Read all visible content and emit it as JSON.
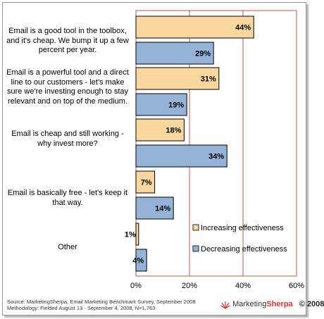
{
  "chart_data": {
    "type": "bar",
    "orientation": "horizontal",
    "categories": [
      "Email is a good tool in the toolbox, and it's cheap. We bump it up a few percent per year.",
      "Email is a powerful tool and a direct line to our customers - let's make sure we're investing enough to stay relevant and on top of the medium.",
      "Email is cheap and still working - why invest more?",
      "Email is basically free - let's keep it that way.",
      "Other"
    ],
    "category_lines": [
      [
        "Email is a good tool in the toolbox,",
        "and it's cheap. We bump it up a few",
        "percent per year."
      ],
      [
        "Email is a powerful tool and a direct",
        "line to our customers - let's make",
        "sure we're investing enough to stay",
        "relevant and on top of the medium."
      ],
      [
        "Email is cheap and still working -",
        "why invest more?"
      ],
      [
        "Email is basically free - let's keep it",
        "that way."
      ],
      [
        "Other"
      ]
    ],
    "series": [
      {
        "name": "Increasing effectiveness",
        "values": [
          44,
          31,
          18,
          7,
          1
        ],
        "color": "#fbd7a0"
      },
      {
        "name": "Decreasing effectiveness",
        "values": [
          29,
          19,
          34,
          14,
          4
        ],
        "color": "#94b3d7"
      }
    ],
    "value_suffix": "%",
    "xlim": [
      0,
      60
    ],
    "xticks": [
      0,
      20,
      40,
      60
    ],
    "xtick_labels": [
      "0%",
      "20%",
      "40%",
      "60%"
    ],
    "grid": "vertical lines at 20% and 40%",
    "legend_position": "lower-right"
  },
  "footer": {
    "line1": "Source: MarketingSherpa, Email Marketing Benchmark Survey, September 2008",
    "line2": "Methodology: Fielded August 13 - September 4, 2008, N=1,763"
  },
  "brand": {
    "name_part1": "Marketing",
    "name_part2": "Sherpa",
    "year": "© 2008"
  },
  "colors": {
    "plot_border": "#c0504d",
    "gridline": "#c0504d",
    "bar_outline": "#000000"
  }
}
